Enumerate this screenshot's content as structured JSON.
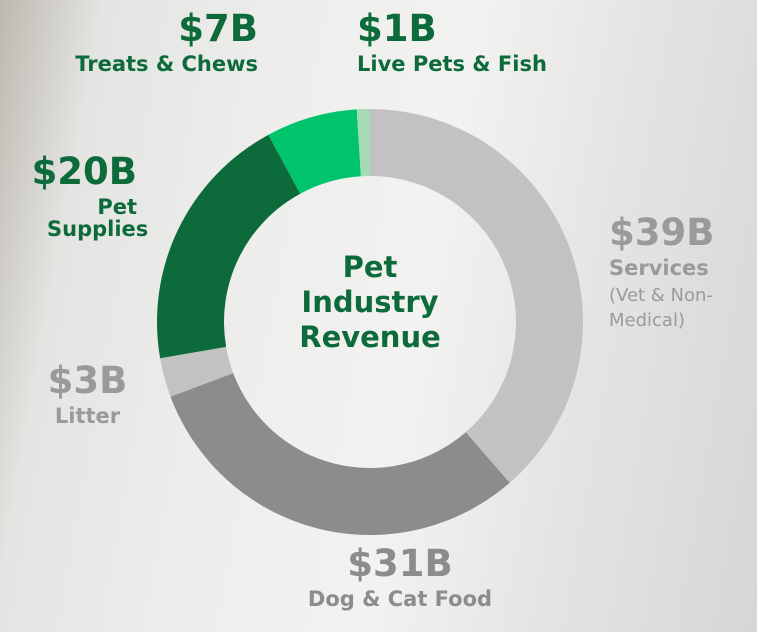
{
  "chart_data": {
    "type": "donut",
    "title": "Pet Industry Revenue",
    "categories": [
      "Services",
      "Dog & Cat Food",
      "Litter",
      "Pet Supplies",
      "Treats & Chews",
      "Live Pets & Fish"
    ],
    "values": [
      39,
      31,
      3,
      20,
      7,
      1
    ],
    "value_labels": [
      "$39B",
      "$31B",
      "$3B",
      "$20B",
      "$7B",
      "$1B"
    ],
    "annotation": "(Vet & Non-Medical)",
    "colors": [
      "#c2c2c2",
      "#8c8c8c",
      "#c2c2c2",
      "#0d6b3b",
      "#00c46c",
      "#a6d9b6"
    ],
    "label_colors": [
      "#9a9a9a",
      "#8c8c8c",
      "#9a9a9a",
      "#0d6b3b",
      "#0d6b3b",
      "#0d6b3b"
    ],
    "title_color": "#0d6b3b"
  }
}
